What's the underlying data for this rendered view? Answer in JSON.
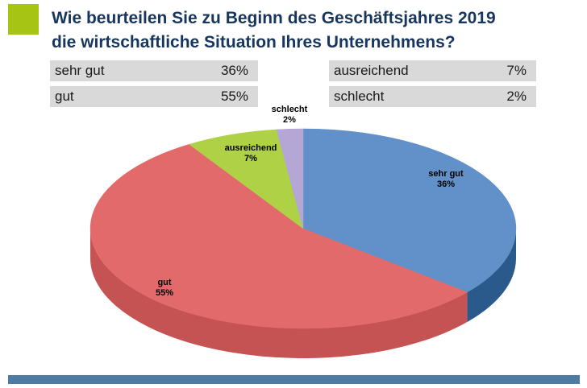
{
  "header": {
    "title_line1": "Wie beurteilen Sie zu Beginn des Geschäftsjahres 2019",
    "title_line2": "die wirtschaftliche Situation Ihres Unternehmens?"
  },
  "legend": {
    "rows": [
      {
        "label": "sehr gut",
        "value": "36%"
      },
      {
        "label": "gut",
        "value": "55%"
      },
      {
        "label": "ausreichend",
        "value": "7%"
      },
      {
        "label": "schlecht",
        "value": "2%"
      }
    ]
  },
  "chart_data": {
    "type": "pie",
    "style": "3d",
    "title": "Wie beurteilen Sie zu Beginn des Geschäftsjahres 2019 die wirtschaftliche Situation Ihres Unternehmens?",
    "labels": [
      "sehr gut",
      "gut",
      "ausreichend",
      "schlecht"
    ],
    "values": [
      36,
      55,
      7,
      2
    ],
    "value_labels": [
      "36%",
      "55%",
      "7%",
      "2%"
    ],
    "colors": [
      "#6191c8",
      "#e26a6a",
      "#aed146",
      "#b4a7d6"
    ],
    "side_colors": [
      "#2a5a8c",
      "#c65353",
      "#7fa32e",
      "#8678ab"
    ],
    "start_angle_deg": 0,
    "direction": "clockwise",
    "legend_position": "top"
  },
  "colors": {
    "accent_green": "#a6c414",
    "title_blue": "#17365d",
    "legend_bg": "#d9d9d9",
    "footer_bar": "#4f7ba3"
  }
}
